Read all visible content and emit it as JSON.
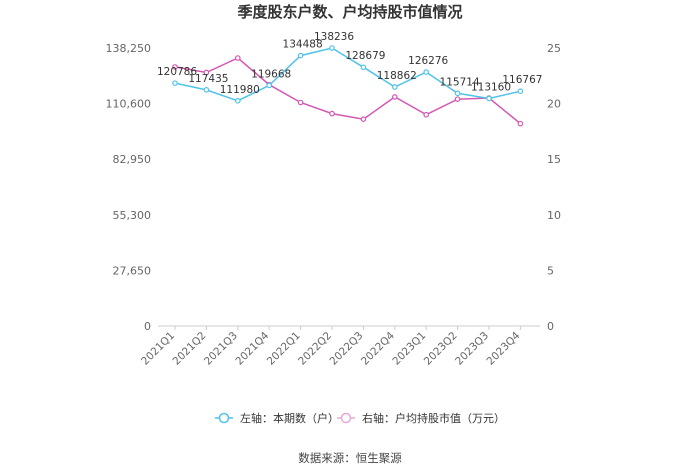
{
  "chart_data": {
    "type": "line",
    "title": "季度股东户数、户均持股市值情况",
    "categories": [
      "2021Q1",
      "2021Q2",
      "2021Q3",
      "2021Q4",
      "2022Q1",
      "2022Q2",
      "2022Q3",
      "2022Q4",
      "2023Q1",
      "2023Q2",
      "2023Q3",
      "2023Q4"
    ],
    "left_axis": {
      "ylim": [
        0,
        138250
      ],
      "ticks": [
        0,
        27650,
        55300,
        82950,
        110600,
        138250
      ],
      "tick_labels": [
        "0",
        "27,650",
        "55,300",
        "82,950",
        "110,600",
        "138,250"
      ]
    },
    "right_axis": {
      "ylim": [
        0,
        25
      ],
      "ticks": [
        0,
        5,
        10,
        15,
        20,
        25
      ],
      "tick_labels": [
        "0",
        "5",
        "10",
        "15",
        "20",
        "25"
      ]
    },
    "series": [
      {
        "name": "左轴：本期数（户）",
        "axis": "left",
        "color": "#4FC3E8",
        "values": [
          120786,
          117435,
          111980,
          119668,
          134488,
          138236,
          128679,
          118862,
          126276,
          115714,
          113160,
          116767
        ],
        "labels": [
          "120786",
          "117435",
          "111980",
          "119668",
          "134488",
          "138236",
          "128679",
          "118862",
          "126276",
          "115714",
          "113160",
          "116767"
        ]
      },
      {
        "name": "右轴：户均持股市值（万元）",
        "axis": "right",
        "color": "#D557B4",
        "values": [
          23.3,
          22.8,
          24.1,
          21.7,
          20.1,
          19.1,
          18.6,
          20.6,
          19.0,
          20.4,
          20.5,
          18.2
        ]
      }
    ],
    "legend_position": "bottom",
    "grid": false,
    "source": "数据来源：恒生聚源"
  }
}
